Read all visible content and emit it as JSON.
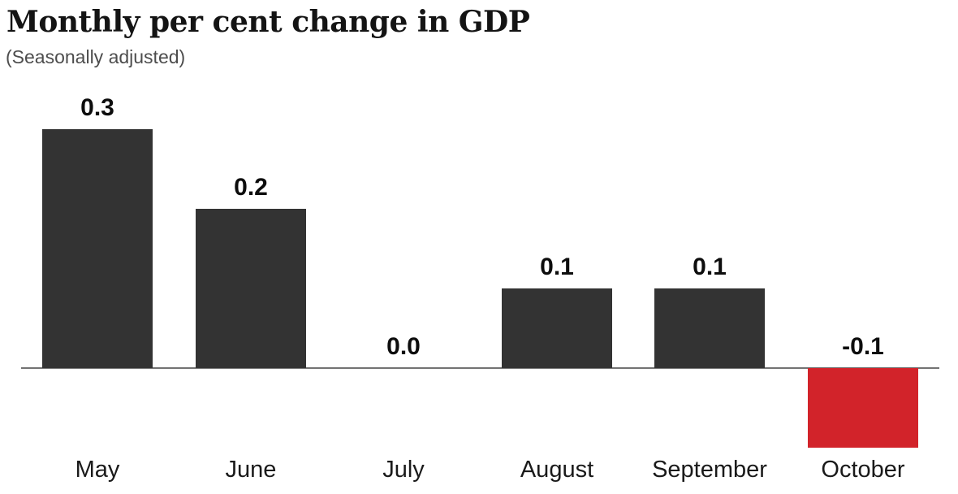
{
  "header": {
    "title": "Monthly per cent change in GDP",
    "subtitle": "(Seasonally adjusted)"
  },
  "chart_data": {
    "type": "bar",
    "title": "Monthly per cent change in GDP",
    "subtitle": "(Seasonally adjusted)",
    "categories": [
      "May",
      "June",
      "July",
      "August",
      "September",
      "October"
    ],
    "values": [
      0.3,
      0.2,
      0.0,
      0.1,
      0.1,
      -0.1
    ],
    "value_labels": [
      "0.3",
      "0.2",
      "0.0",
      "0.1",
      "0.1",
      "-0.1"
    ],
    "xlabel": "",
    "ylabel": "",
    "ylim": [
      -0.15,
      0.35
    ],
    "grid": false,
    "legend": "none",
    "colors": {
      "positive_bar": "#333333",
      "negative_bar": "#d2232a",
      "axis_line": "#737373",
      "title_text": "#141414",
      "subtitle_text": "#4d4d4d",
      "label_text": "#0d0d0d"
    }
  }
}
